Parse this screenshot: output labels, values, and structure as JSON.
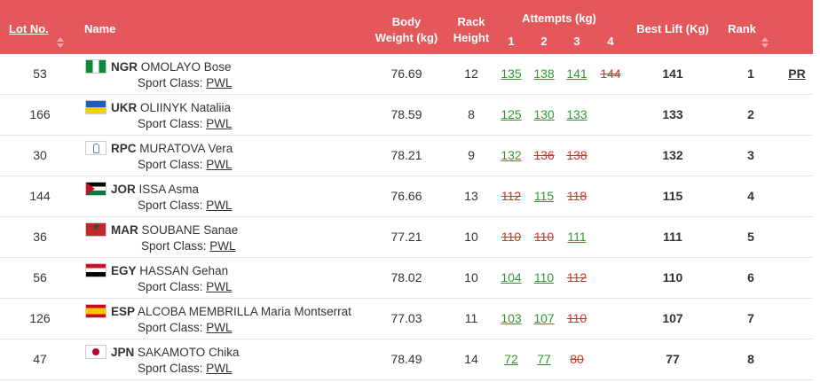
{
  "header": {
    "lot_no": "Lot No.",
    "name": "Name",
    "body_weight_1": "Body",
    "body_weight_2": "Weight (kg)",
    "rack_1": "Rack",
    "rack_2": "Height",
    "attempts": "Attempts (kg)",
    "att_nums": [
      "1",
      "2",
      "3",
      "4"
    ],
    "best_lift": "Best Lift (Kg)",
    "rank": "Rank"
  },
  "rows": [
    {
      "lot": "53",
      "flag": "ngr",
      "country": "NGR",
      "athlete": "OMOLAYO Bose",
      "class_label": "Sport Class:",
      "class": "PWL",
      "bw": "76.69",
      "rack": "12",
      "attempts": [
        {
          "v": "135",
          "s": "good"
        },
        {
          "v": "138",
          "s": "good"
        },
        {
          "v": "141",
          "s": "good"
        },
        {
          "v": "144",
          "s": "bad"
        }
      ],
      "best": "141",
      "rank": "1",
      "record": "PR"
    },
    {
      "lot": "166",
      "flag": "ukr",
      "country": "UKR",
      "athlete": "OLIINYK Nataliia",
      "class_label": "Sport Class:",
      "class": "PWL",
      "bw": "78.59",
      "rack": "8",
      "attempts": [
        {
          "v": "125",
          "s": "good"
        },
        {
          "v": "130",
          "s": "good"
        },
        {
          "v": "133",
          "s": "good"
        },
        {
          "v": "",
          "s": ""
        }
      ],
      "best": "133",
      "rank": "2",
      "record": ""
    },
    {
      "lot": "30",
      "flag": "rpc",
      "country": "RPC",
      "athlete": "MURATOVA Vera",
      "class_label": "Sport Class:",
      "class": "PWL",
      "bw": "78.21",
      "rack": "9",
      "attempts": [
        {
          "v": "132",
          "s": "good"
        },
        {
          "v": "136",
          "s": "bad"
        },
        {
          "v": "138",
          "s": "bad"
        },
        {
          "v": "",
          "s": ""
        }
      ],
      "best": "132",
      "rank": "3",
      "record": ""
    },
    {
      "lot": "144",
      "flag": "jor",
      "country": "JOR",
      "athlete": "ISSA Asma",
      "class_label": "Sport Class:",
      "class": "PWL",
      "bw": "76.66",
      "rack": "13",
      "attempts": [
        {
          "v": "112",
          "s": "bad"
        },
        {
          "v": "115",
          "s": "good"
        },
        {
          "v": "118",
          "s": "bad"
        },
        {
          "v": "",
          "s": ""
        }
      ],
      "best": "115",
      "rank": "4",
      "record": ""
    },
    {
      "lot": "36",
      "flag": "mar",
      "country": "MAR",
      "athlete": "SOUBANE Sanae",
      "class_label": "Sport Class:",
      "class": "PWL",
      "bw": "77.21",
      "rack": "10",
      "attempts": [
        {
          "v": "110",
          "s": "bad"
        },
        {
          "v": "110",
          "s": "bad"
        },
        {
          "v": "111",
          "s": "good"
        },
        {
          "v": "",
          "s": ""
        }
      ],
      "best": "111",
      "rank": "5",
      "record": ""
    },
    {
      "lot": "56",
      "flag": "egy",
      "country": "EGY",
      "athlete": "HASSAN Gehan",
      "class_label": "Sport Class:",
      "class": "PWL",
      "bw": "78.02",
      "rack": "10",
      "attempts": [
        {
          "v": "104",
          "s": "good"
        },
        {
          "v": "110",
          "s": "good"
        },
        {
          "v": "112",
          "s": "bad"
        },
        {
          "v": "",
          "s": ""
        }
      ],
      "best": "110",
      "rank": "6",
      "record": ""
    },
    {
      "lot": "126",
      "flag": "esp",
      "country": "ESP",
      "athlete": "ALCOBA MEMBRILLA Maria Montserrat",
      "class_label": "Sport Class:",
      "class": "PWL",
      "bw": "77.03",
      "rack": "11",
      "attempts": [
        {
          "v": "103",
          "s": "good"
        },
        {
          "v": "107",
          "s": "good"
        },
        {
          "v": "110",
          "s": "bad"
        },
        {
          "v": "",
          "s": ""
        }
      ],
      "best": "107",
      "rank": "7",
      "record": ""
    },
    {
      "lot": "47",
      "flag": "jpn",
      "country": "JPN",
      "athlete": "SAKAMOTO Chika",
      "class_label": "Sport Class:",
      "class": "PWL",
      "bw": "78.49",
      "rack": "14",
      "attempts": [
        {
          "v": "72",
          "s": "good"
        },
        {
          "v": "77",
          "s": "good"
        },
        {
          "v": "80",
          "s": "bad"
        },
        {
          "v": "",
          "s": ""
        }
      ],
      "best": "77",
      "rank": "8",
      "record": ""
    }
  ],
  "colors": {
    "header_bg": "#e4575a",
    "good": "#2e9a2e",
    "bad": "#e02b2b"
  }
}
